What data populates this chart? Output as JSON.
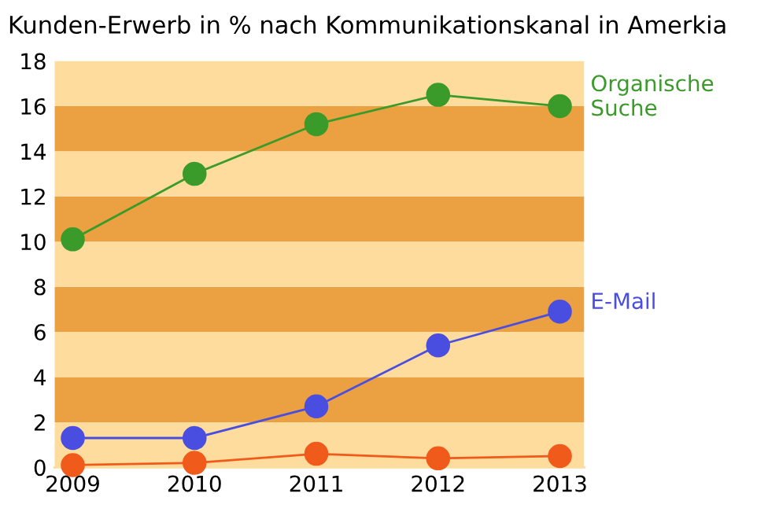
{
  "chart_data": {
    "type": "line",
    "title": "Kunden-Erwerb in % nach Kommunikationskanal in Amerkia",
    "x": [
      2009,
      2010,
      2011,
      2012,
      2013
    ],
    "series": [
      {
        "name": "Organische Suche",
        "color": "#3a9a2a",
        "values": [
          10.1,
          13,
          15.2,
          16.5,
          16
        ]
      },
      {
        "name": "E-Mail",
        "color": "#4a4ee0",
        "values": [
          1.3,
          1.3,
          2.7,
          5.4,
          6.9
        ]
      },
      {
        "color": "#f05a1a",
        "values": [
          0.1,
          0.2,
          0.6,
          0.4,
          0.5
        ]
      }
    ],
    "xlim": [
      2008.85,
      2013.2
    ],
    "xticks": [
      2009,
      2010,
      2011,
      2012,
      2013
    ],
    "ylim": [
      0,
      18
    ],
    "yticks": [
      0,
      2,
      4,
      6,
      8,
      10,
      12,
      14,
      16,
      18
    ],
    "bands": [
      {
        "axis": "y",
        "from": 0,
        "to": 2,
        "color": "#fddc9e"
      },
      {
        "axis": "y",
        "from": 2,
        "to": 4,
        "color": "#eba141"
      },
      {
        "axis": "y",
        "from": 4,
        "to": 6,
        "color": "#fddc9e"
      },
      {
        "axis": "y",
        "from": 6,
        "to": 8,
        "color": "#eba141"
      },
      {
        "axis": "y",
        "from": 8,
        "to": 10,
        "color": "#fddc9e"
      },
      {
        "axis": "y",
        "from": 10,
        "to": 12,
        "color": "#eba141"
      },
      {
        "axis": "y",
        "from": 12,
        "to": 14,
        "color": "#fddc9e"
      },
      {
        "axis": "y",
        "from": 14,
        "to": 16,
        "color": "#eba141"
      },
      {
        "axis": "y",
        "from": 16,
        "to": 18,
        "color": "#fddc9e"
      }
    ],
    "grid": false,
    "legend": false,
    "marker": "circle",
    "line_style": "solid"
  }
}
